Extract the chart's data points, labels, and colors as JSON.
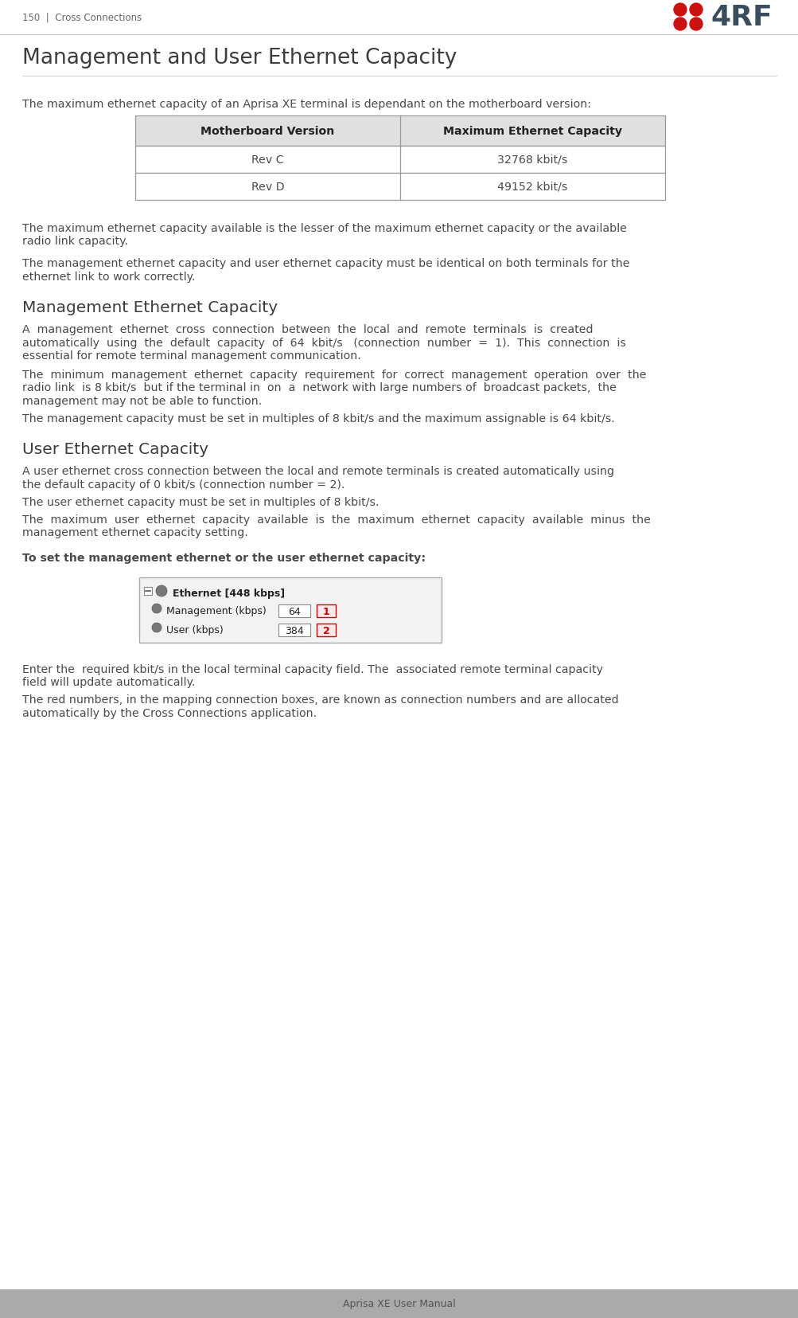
{
  "page_header_left": "150  |  Cross Connections",
  "page_footer": "Aprisa XE User Manual",
  "main_title": "Management and User Ethernet Capacity",
  "body_text_color": "#4a4a4a",
  "logo_red": "#cc1111",
  "logo_dark": "#3a4d5c",
  "table_border_color": "#999999",
  "table_header_bg": "#e0e0e0",
  "table_headers": [
    "Motherboard Version",
    "Maximum Ethernet Capacity"
  ],
  "table_rows": [
    [
      "Rev C",
      "32768 kbit/s"
    ],
    [
      "Rev D",
      "49152 kbit/s"
    ]
  ],
  "para1": "The maximum ethernet capacity of an Aprisa XE terminal is dependant on the motherboard version:",
  "para2a": "The maximum ethernet capacity available is the lesser of the maximum ethernet capacity or the available",
  "para2b": "radio link capacity.",
  "para3a": "The management ethernet capacity and user ethernet capacity must be identical on both terminals for the",
  "para3b": "ethernet link to work correctly.",
  "section1_title": "Management Ethernet Capacity",
  "s1p1a": "A  management  ethernet  cross  connection  between  the  local  and  remote  terminals  is  created",
  "s1p1b": "automatically  using  the  default  capacity  of  64  kbit/s   (connection  number  =  1).  This  connection  is",
  "s1p1c": "essential for remote terminal management communication.",
  "s1p2a": "The  minimum  management  ethernet  capacity  requirement  for  correct  management  operation  over  the",
  "s1p2b": "radio link  is 8 kbit/s  but if the terminal in  on  a  network with large numbers of  broadcast packets,  the",
  "s1p2c": "management may not be able to function.",
  "s1p3": "The management capacity must be set in multiples of 8 kbit/s and the maximum assignable is 64 kbit/s.",
  "section2_title": "User Ethernet Capacity",
  "s2p1a": "A user ethernet cross connection between the local and remote terminals is created automatically using",
  "s2p1b": "the default capacity of 0 kbit/s (connection number = 2).",
  "s2p2": "The user ethernet capacity must be set in multiples of 8 kbit/s.",
  "s2p3a": "The  maximum  user  ethernet  capacity  available  is  the  maximum  ethernet  capacity  available  minus  the",
  "s2p3b": "management ethernet capacity setting.",
  "bold_instruction": "To set the management ethernet or the user ethernet capacity:",
  "ss_label1": "Ethernet [448 kbps]",
  "ss_label2": "Management (kbps)",
  "ss_label3": "User (kbps)",
  "ss_val1": "64",
  "ss_val2": "384",
  "ss_num1": "1",
  "ss_num2": "2",
  "after1a": "Enter the  required kbit/s in the local terminal capacity field. The  associated remote terminal capacity",
  "after1b": "field will update automatically.",
  "after2a": "The red numbers, in the mapping connection boxes, are known as connection numbers and are allocated",
  "after2b": "automatically by the Cross Connections application.",
  "red_color": "#cc0000",
  "footer_bg": "#aaaaaa",
  "line_color": "#cccccc"
}
